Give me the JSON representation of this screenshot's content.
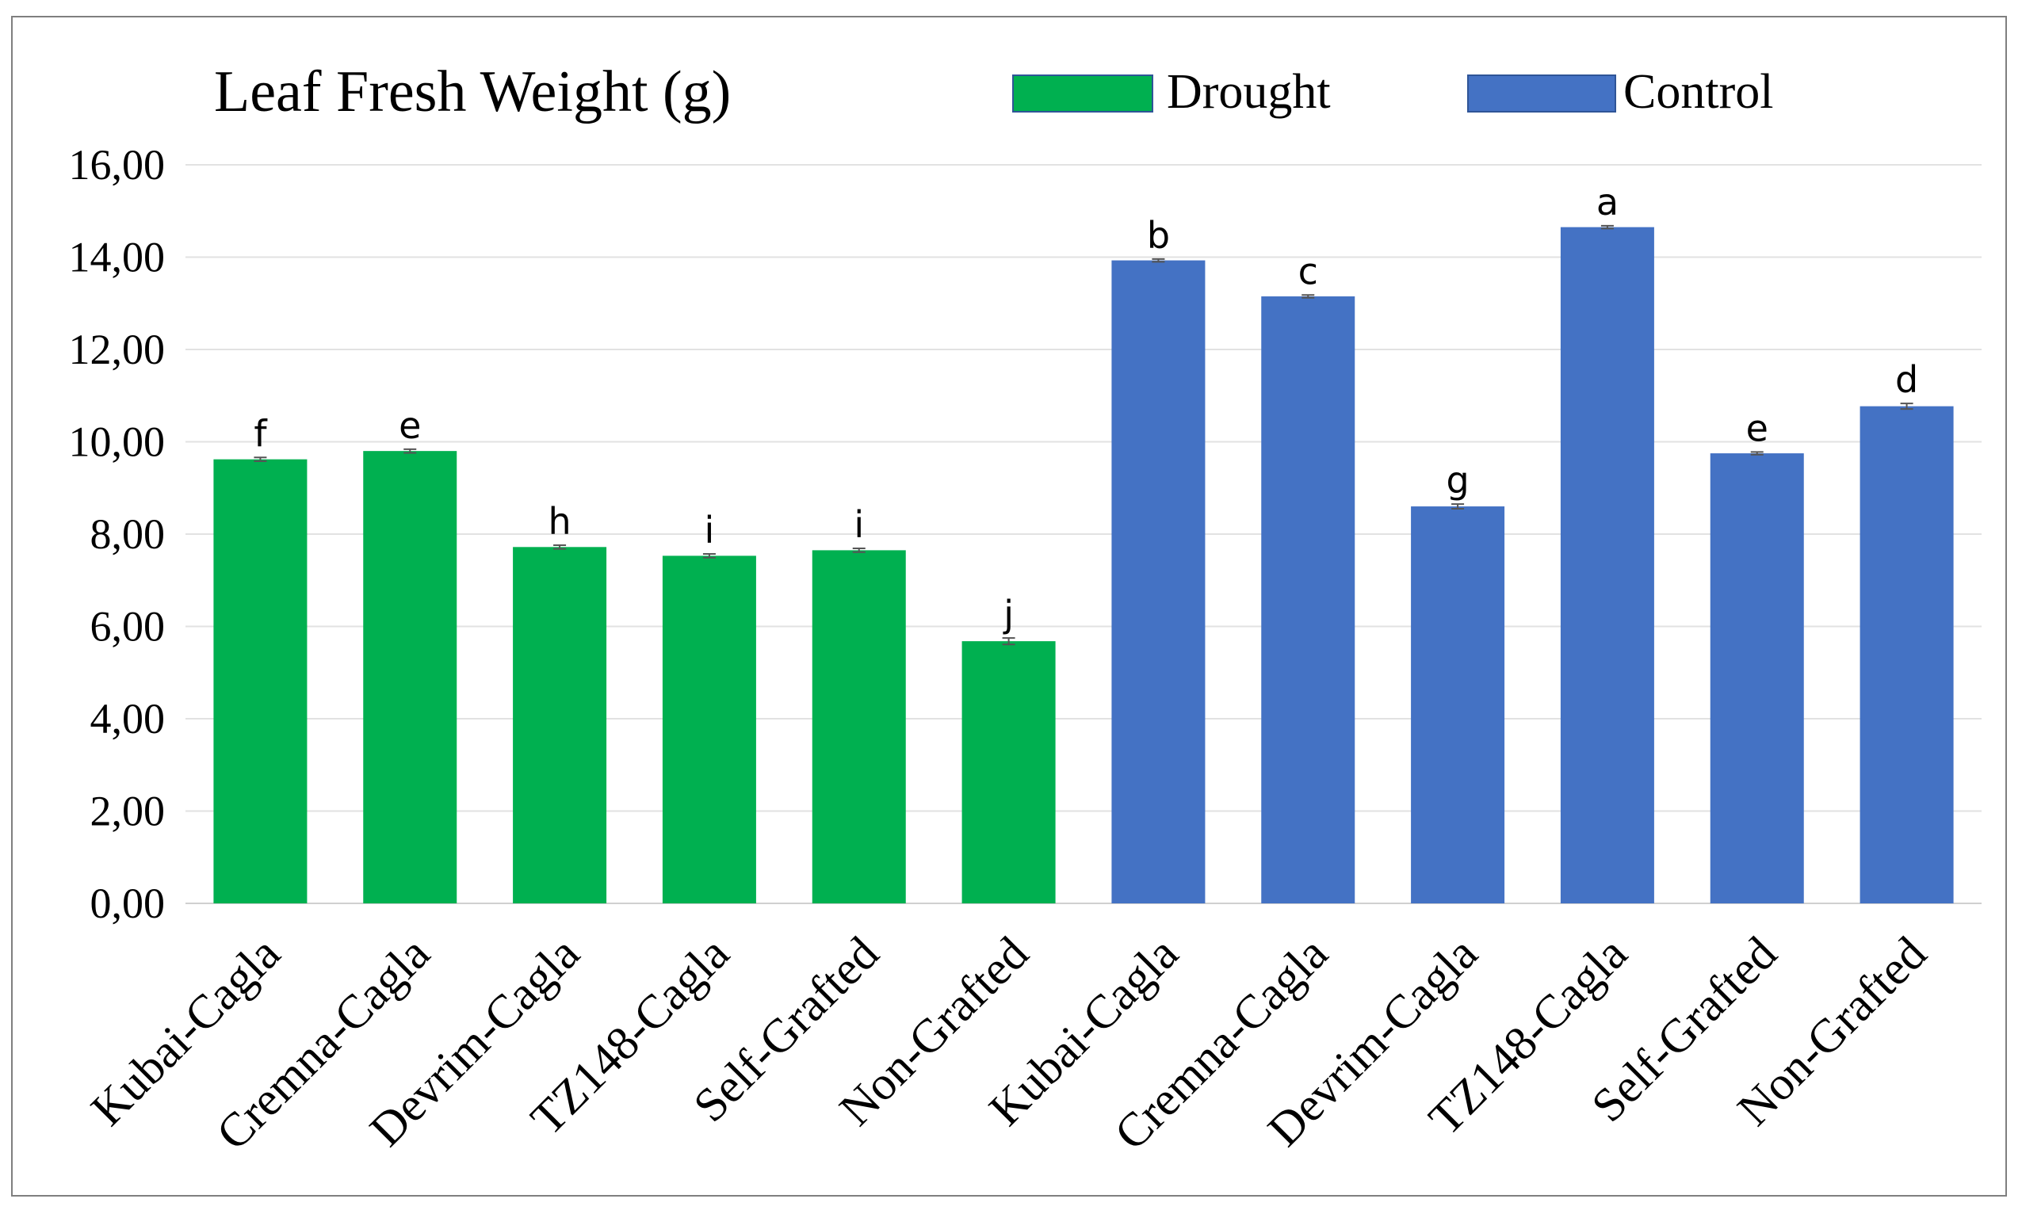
{
  "chart_data": {
    "type": "bar",
    "title": "Leaf Fresh Weight (g)",
    "xlabel": "",
    "ylabel": "",
    "ylim": [
      0,
      16
    ],
    "y_ticks": [
      0,
      2,
      4,
      6,
      8,
      10,
      12,
      14,
      16
    ],
    "y_tick_labels": [
      "0,00",
      "2,00",
      "4,00",
      "6,00",
      "8,00",
      "10,00",
      "12,00",
      "14,00",
      "16,00"
    ],
    "grid": true,
    "legend_position": "top-right",
    "categories": [
      "Kubai-Cagla",
      "Cremna-Cagla",
      "Devrim-Cagla",
      "TZ148-Cagla",
      "Self-Grafted",
      "Non-Grafted",
      "Kubai-Cagla",
      "Cremna-Cagla",
      "Devrim-Cagla",
      "TZ148-Cagla",
      "Self-Grafted",
      "Non-Grafted"
    ],
    "series": [
      {
        "name": "Drought",
        "color": "#00b050",
        "positions": [
          0,
          1,
          2,
          3,
          4,
          5
        ],
        "values": [
          9.62,
          9.8,
          7.72,
          7.53,
          7.65,
          5.68
        ],
        "errors": [
          0.04,
          0.04,
          0.04,
          0.04,
          0.04,
          0.07
        ],
        "letters": [
          "f",
          "e",
          "h",
          "i",
          "i",
          "j"
        ]
      },
      {
        "name": "Control",
        "color": "#4472c4",
        "positions": [
          6,
          7,
          8,
          9,
          10,
          11
        ],
        "values": [
          13.93,
          13.15,
          8.6,
          14.65,
          9.75,
          10.77
        ],
        "errors": [
          0.03,
          0.03,
          0.05,
          0.03,
          0.03,
          0.06
        ],
        "letters": [
          "b",
          "c",
          "g",
          "a",
          "e",
          "d"
        ]
      }
    ]
  }
}
